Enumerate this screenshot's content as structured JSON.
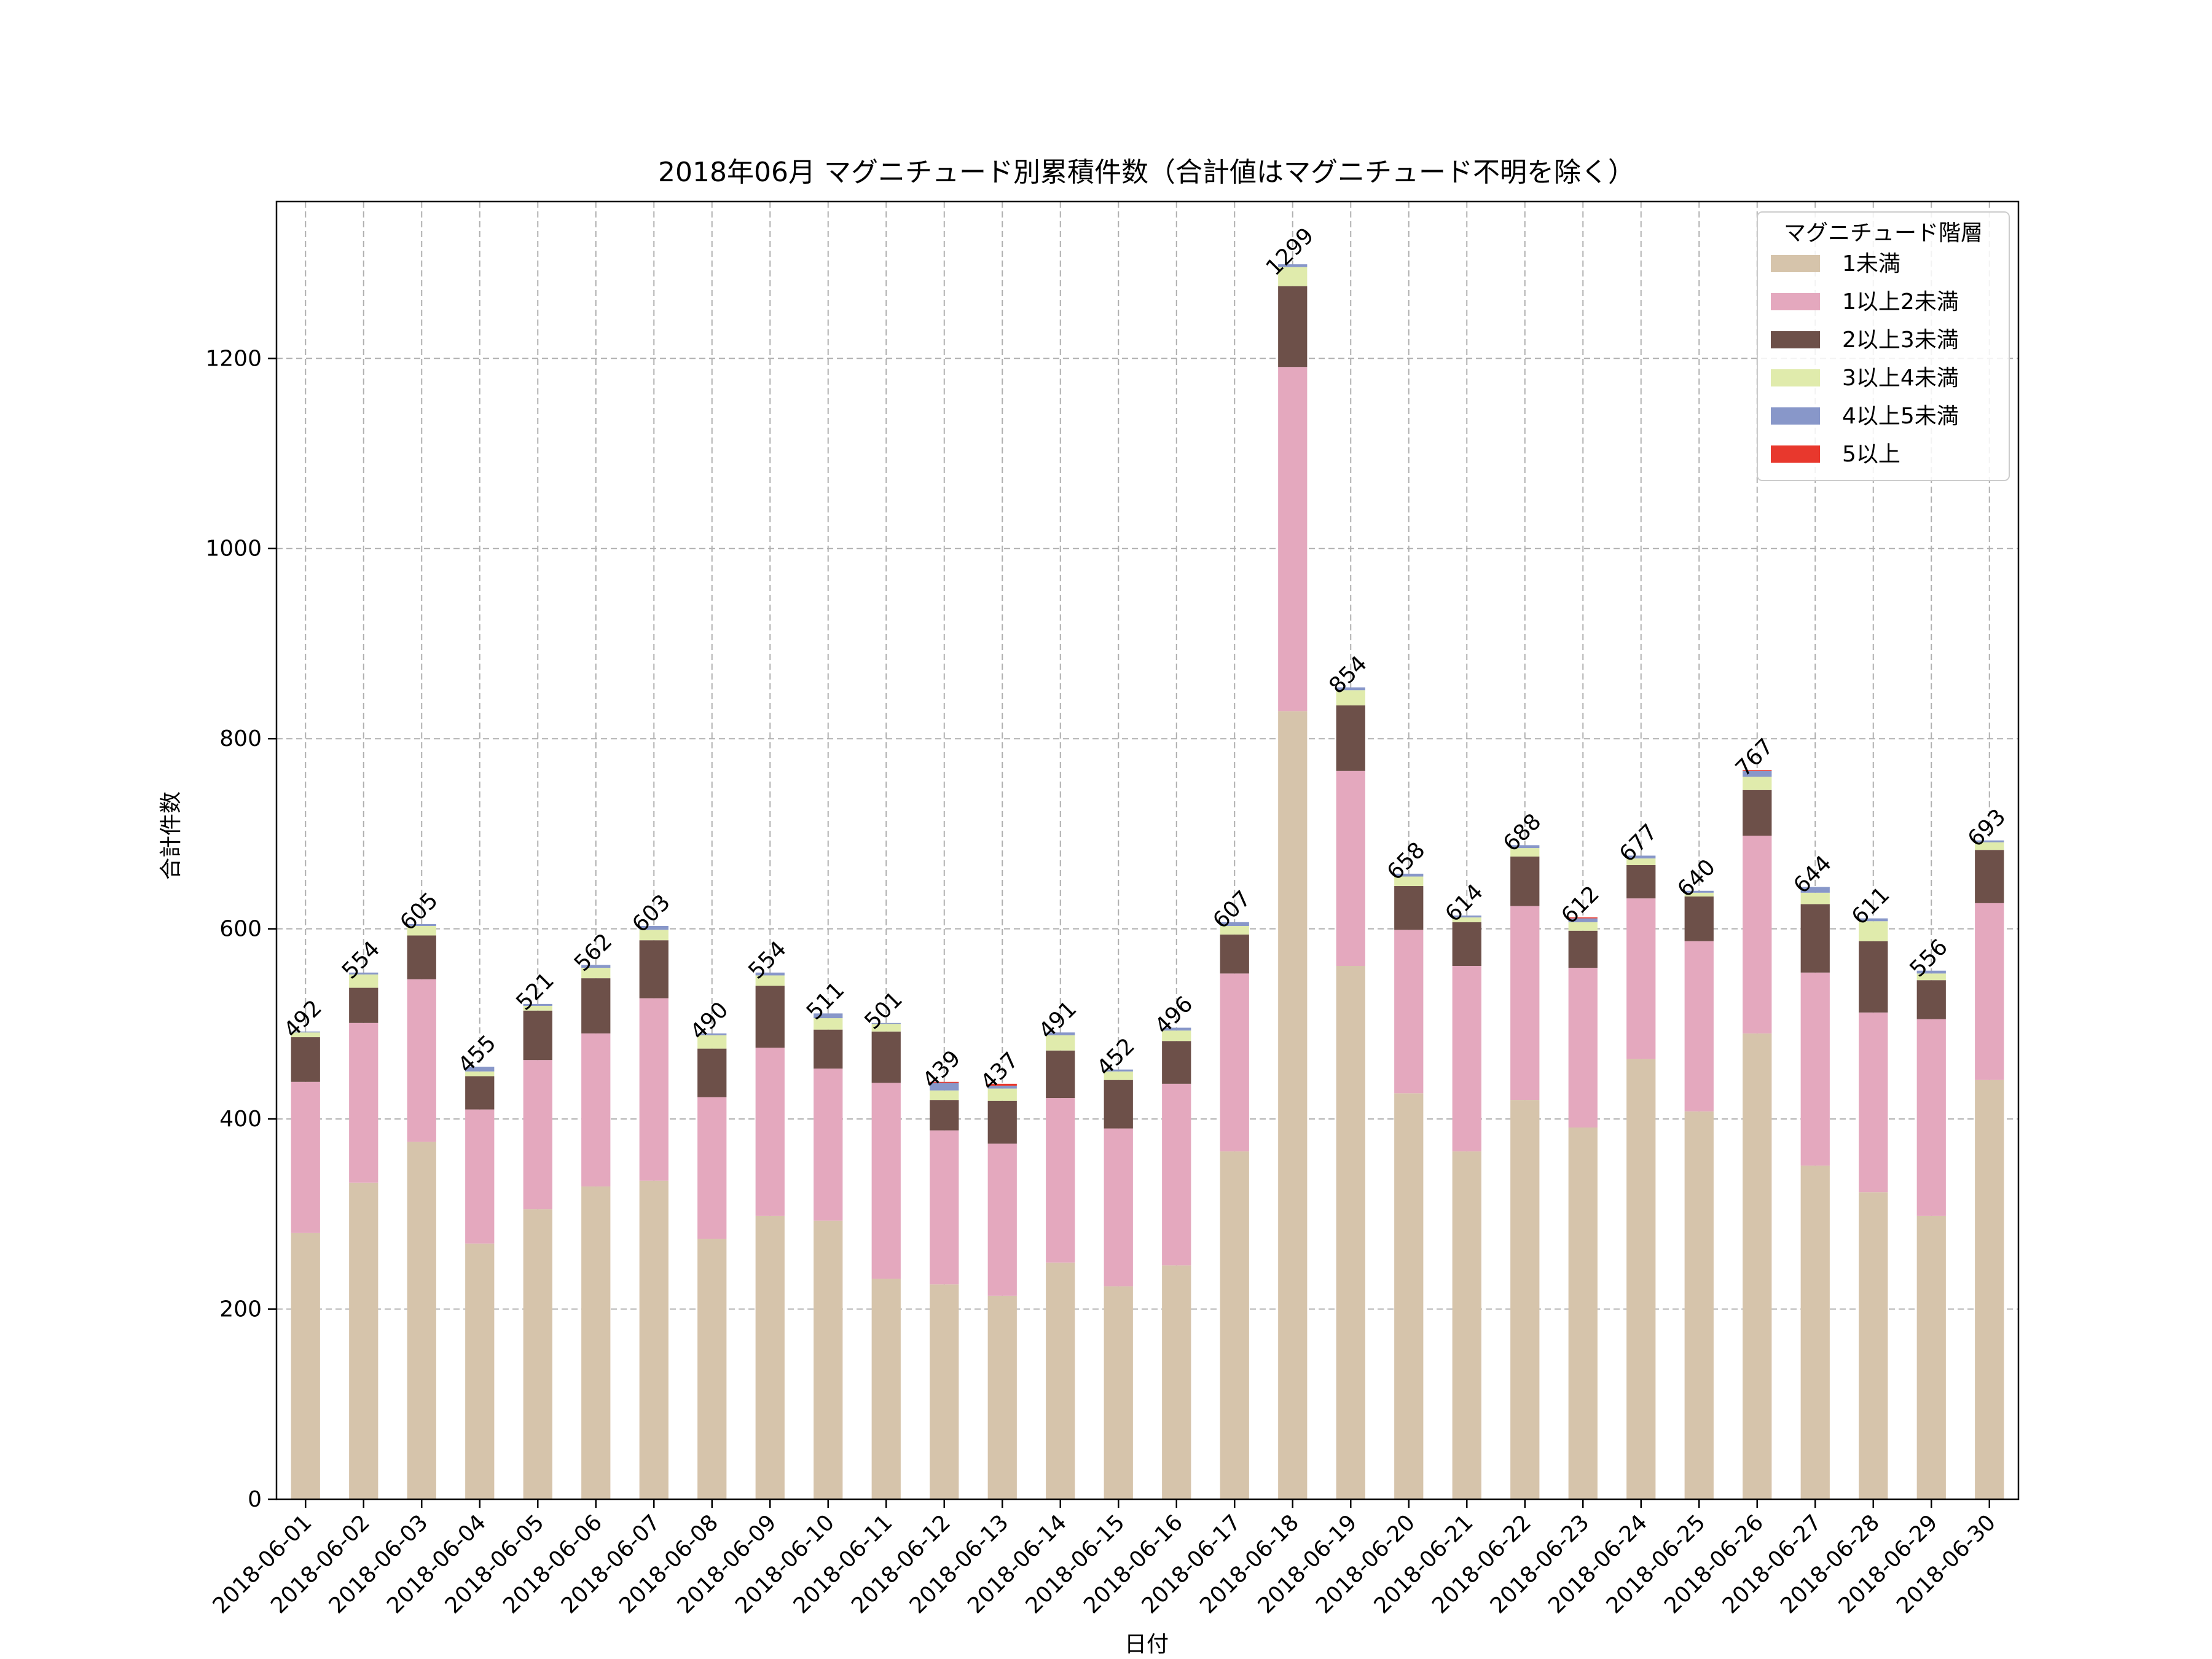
{
  "chart_data": {
    "type": "bar",
    "stacked": true,
    "title": "2018年06月 マグニチュード別累積件数（合計値はマグニチュード不明を除く）",
    "xlabel": "日付",
    "ylabel": "合計件数",
    "ylim": [
      0,
      1365
    ],
    "yticks": [
      0,
      200,
      400,
      600,
      800,
      1000,
      1200
    ],
    "grid": true,
    "legend": {
      "title": "マグニチュード階層",
      "position": "top-right"
    },
    "categories": [
      "2018-06-01",
      "2018-06-02",
      "2018-06-03",
      "2018-06-04",
      "2018-06-05",
      "2018-06-06",
      "2018-06-07",
      "2018-06-08",
      "2018-06-09",
      "2018-06-10",
      "2018-06-11",
      "2018-06-12",
      "2018-06-13",
      "2018-06-14",
      "2018-06-15",
      "2018-06-16",
      "2018-06-17",
      "2018-06-18",
      "2018-06-19",
      "2018-06-20",
      "2018-06-21",
      "2018-06-22",
      "2018-06-23",
      "2018-06-24",
      "2018-06-25",
      "2018-06-26",
      "2018-06-27",
      "2018-06-28",
      "2018-06-29",
      "2018-06-30"
    ],
    "totals": [
      492,
      554,
      605,
      455,
      521,
      562,
      603,
      490,
      554,
      511,
      501,
      439,
      437,
      491,
      452,
      496,
      607,
      1299,
      854,
      658,
      614,
      688,
      612,
      677,
      640,
      767,
      644,
      611,
      556,
      693
    ],
    "series": [
      {
        "name": "1未満",
        "color": "#d6c4ab",
        "values": [
          280,
          333,
          376,
          269,
          305,
          329,
          335,
          274,
          298,
          293,
          232,
          226,
          214,
          249,
          224,
          246,
          366,
          829,
          561,
          427,
          366,
          420,
          391,
          463,
          408,
          490,
          351,
          323,
          298,
          441
        ]
      },
      {
        "name": "1以上2未満",
        "color": "#e4a8be",
        "values": [
          159,
          168,
          171,
          141,
          157,
          161,
          192,
          149,
          177,
          160,
          206,
          162,
          160,
          173,
          166,
          191,
          187,
          362,
          205,
          172,
          195,
          204,
          168,
          169,
          179,
          208,
          203,
          189,
          207,
          186
        ]
      },
      {
        "name": "2以上3未満",
        "color": "#6d5049",
        "values": [
          47,
          37,
          46,
          35,
          52,
          58,
          61,
          51,
          65,
          41,
          54,
          32,
          45,
          50,
          51,
          45,
          41,
          85,
          69,
          46,
          46,
          52,
          39,
          35,
          47,
          48,
          72,
          75,
          41,
          56
        ]
      },
      {
        "name": "3以上4未満",
        "color": "#e0ebac",
        "values": [
          5,
          14,
          10,
          5,
          5,
          11,
          11,
          14,
          11,
          12,
          8,
          10,
          13,
          16,
          9,
          11,
          9,
          20,
          16,
          10,
          5,
          9,
          9,
          7,
          4,
          14,
          12,
          21,
          7,
          8
        ]
      },
      {
        "name": "4以上5未満",
        "color": "#8897c9",
        "values": [
          1,
          2,
          2,
          5,
          2,
          3,
          4,
          2,
          3,
          5,
          1,
          8,
          3,
          3,
          2,
          3,
          4,
          3,
          3,
          3,
          2,
          3,
          4,
          3,
          2,
          6,
          6,
          3,
          3,
          2
        ]
      },
      {
        "name": "5以上",
        "color": "#e8382d",
        "values": [
          0,
          0,
          0,
          0,
          0,
          0,
          0,
          0,
          0,
          0,
          0,
          1,
          2,
          0,
          0,
          0,
          0,
          0,
          0,
          0,
          0,
          0,
          1,
          0,
          0,
          1,
          0,
          0,
          0,
          0
        ]
      }
    ]
  }
}
